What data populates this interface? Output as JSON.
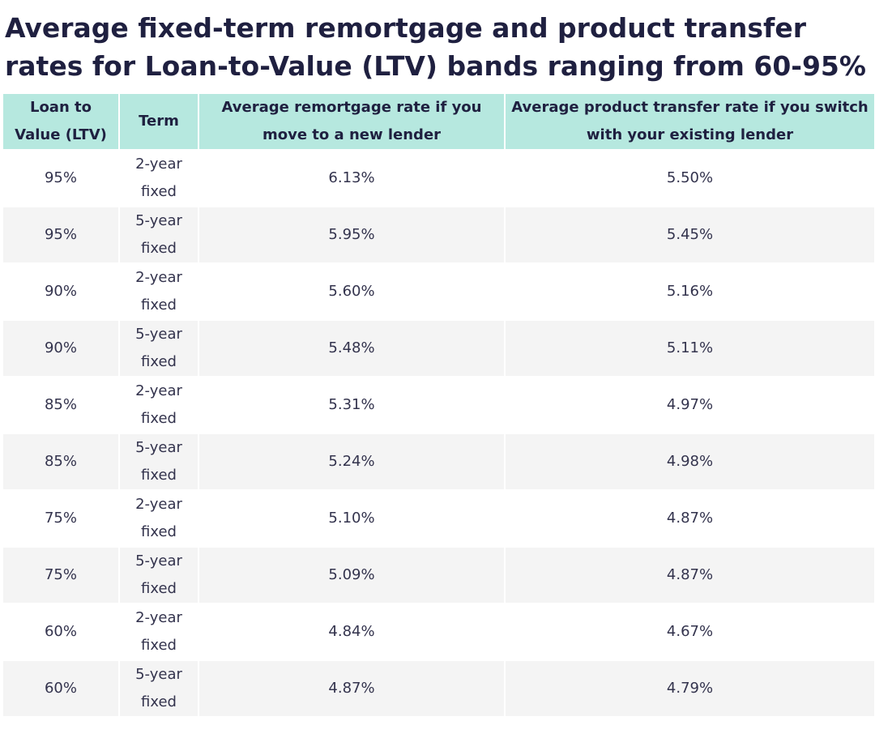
{
  "title": "Average fixed-term remortgage and product transfer rates for Loan-to-Value (LTV) bands ranging from 60-95%",
  "colors": {
    "header_bg": "#b6e8df",
    "title_text": "#1f2040",
    "row_alt_bg": "#f4f4f4"
  },
  "table": {
    "headers": [
      "Loan to Value (LTV)",
      "Term",
      "Average remortgage rate if you move to a new lender",
      "Average product transfer rate if you switch with your existing lender"
    ],
    "rows": [
      {
        "ltv": "95%",
        "term_line1": "2-year",
        "term_line2": "fixed",
        "remortgage": "6.13%",
        "transfer": "5.50%"
      },
      {
        "ltv": "95%",
        "term_line1": "5-year",
        "term_line2": "fixed",
        "remortgage": "5.95%",
        "transfer": "5.45%"
      },
      {
        "ltv": "90%",
        "term_line1": "2-year",
        "term_line2": "fixed",
        "remortgage": "5.60%",
        "transfer": "5.16%"
      },
      {
        "ltv": "90%",
        "term_line1": "5-year",
        "term_line2": "fixed",
        "remortgage": "5.48%",
        "transfer": "5.11%"
      },
      {
        "ltv": "85%",
        "term_line1": "2-year",
        "term_line2": "fixed",
        "remortgage": "5.31%",
        "transfer": "4.97%"
      },
      {
        "ltv": "85%",
        "term_line1": "5-year",
        "term_line2": "fixed",
        "remortgage": "5.24%",
        "transfer": "4.98%"
      },
      {
        "ltv": "75%",
        "term_line1": "2-year",
        "term_line2": "fixed",
        "remortgage": "5.10%",
        "transfer": "4.87%"
      },
      {
        "ltv": "75%",
        "term_line1": "5-year",
        "term_line2": "fixed",
        "remortgage": "5.09%",
        "transfer": "4.87%"
      },
      {
        "ltv": "60%",
        "term_line1": "2-year",
        "term_line2": "fixed",
        "remortgage": "4.84%",
        "transfer": "4.67%"
      },
      {
        "ltv": "60%",
        "term_line1": "5-year",
        "term_line2": "fixed",
        "remortgage": "4.87%",
        "transfer": "4.79%"
      }
    ]
  }
}
